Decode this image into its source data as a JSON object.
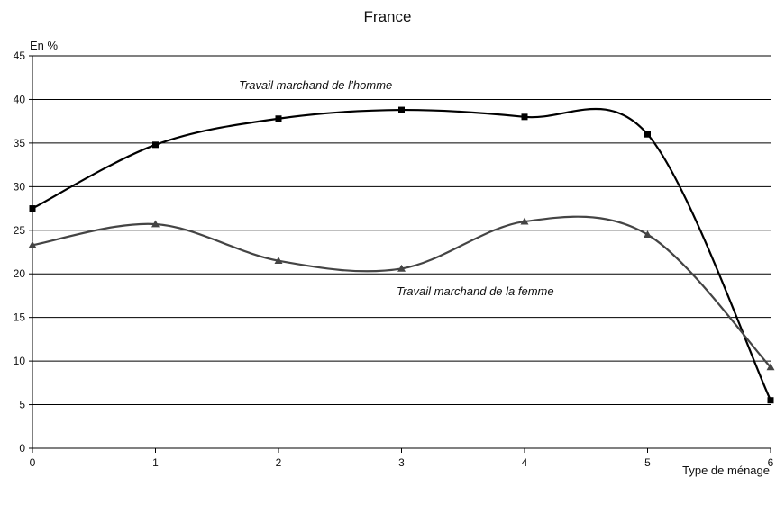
{
  "chart_data": {
    "type": "line",
    "title": "France",
    "ylabel": "En %",
    "xlabel": "Type de ménage",
    "xlim": [
      0,
      6
    ],
    "ylim": [
      0,
      45
    ],
    "x_ticks": [
      0,
      1,
      2,
      3,
      4,
      5,
      6
    ],
    "y_ticks": [
      0,
      5,
      10,
      15,
      20,
      25,
      30,
      35,
      40,
      45
    ],
    "grid": "horizontal",
    "legend": "none",
    "series": [
      {
        "name": "Travail marchand de l’homme",
        "marker": "square",
        "color": "#000000",
        "x": [
          0,
          1,
          2,
          3,
          4,
          5,
          6
        ],
        "values": [
          27.5,
          34.8,
          37.8,
          38.8,
          38.0,
          36.0,
          5.5
        ]
      },
      {
        "name": "Travail marchand de la femme",
        "marker": "triangle",
        "color": "#444444",
        "x": [
          0,
          1,
          2,
          3,
          4,
          5,
          6
        ],
        "values": [
          23.3,
          25.7,
          21.5,
          20.6,
          26.0,
          24.5,
          9.3
        ]
      }
    ]
  }
}
